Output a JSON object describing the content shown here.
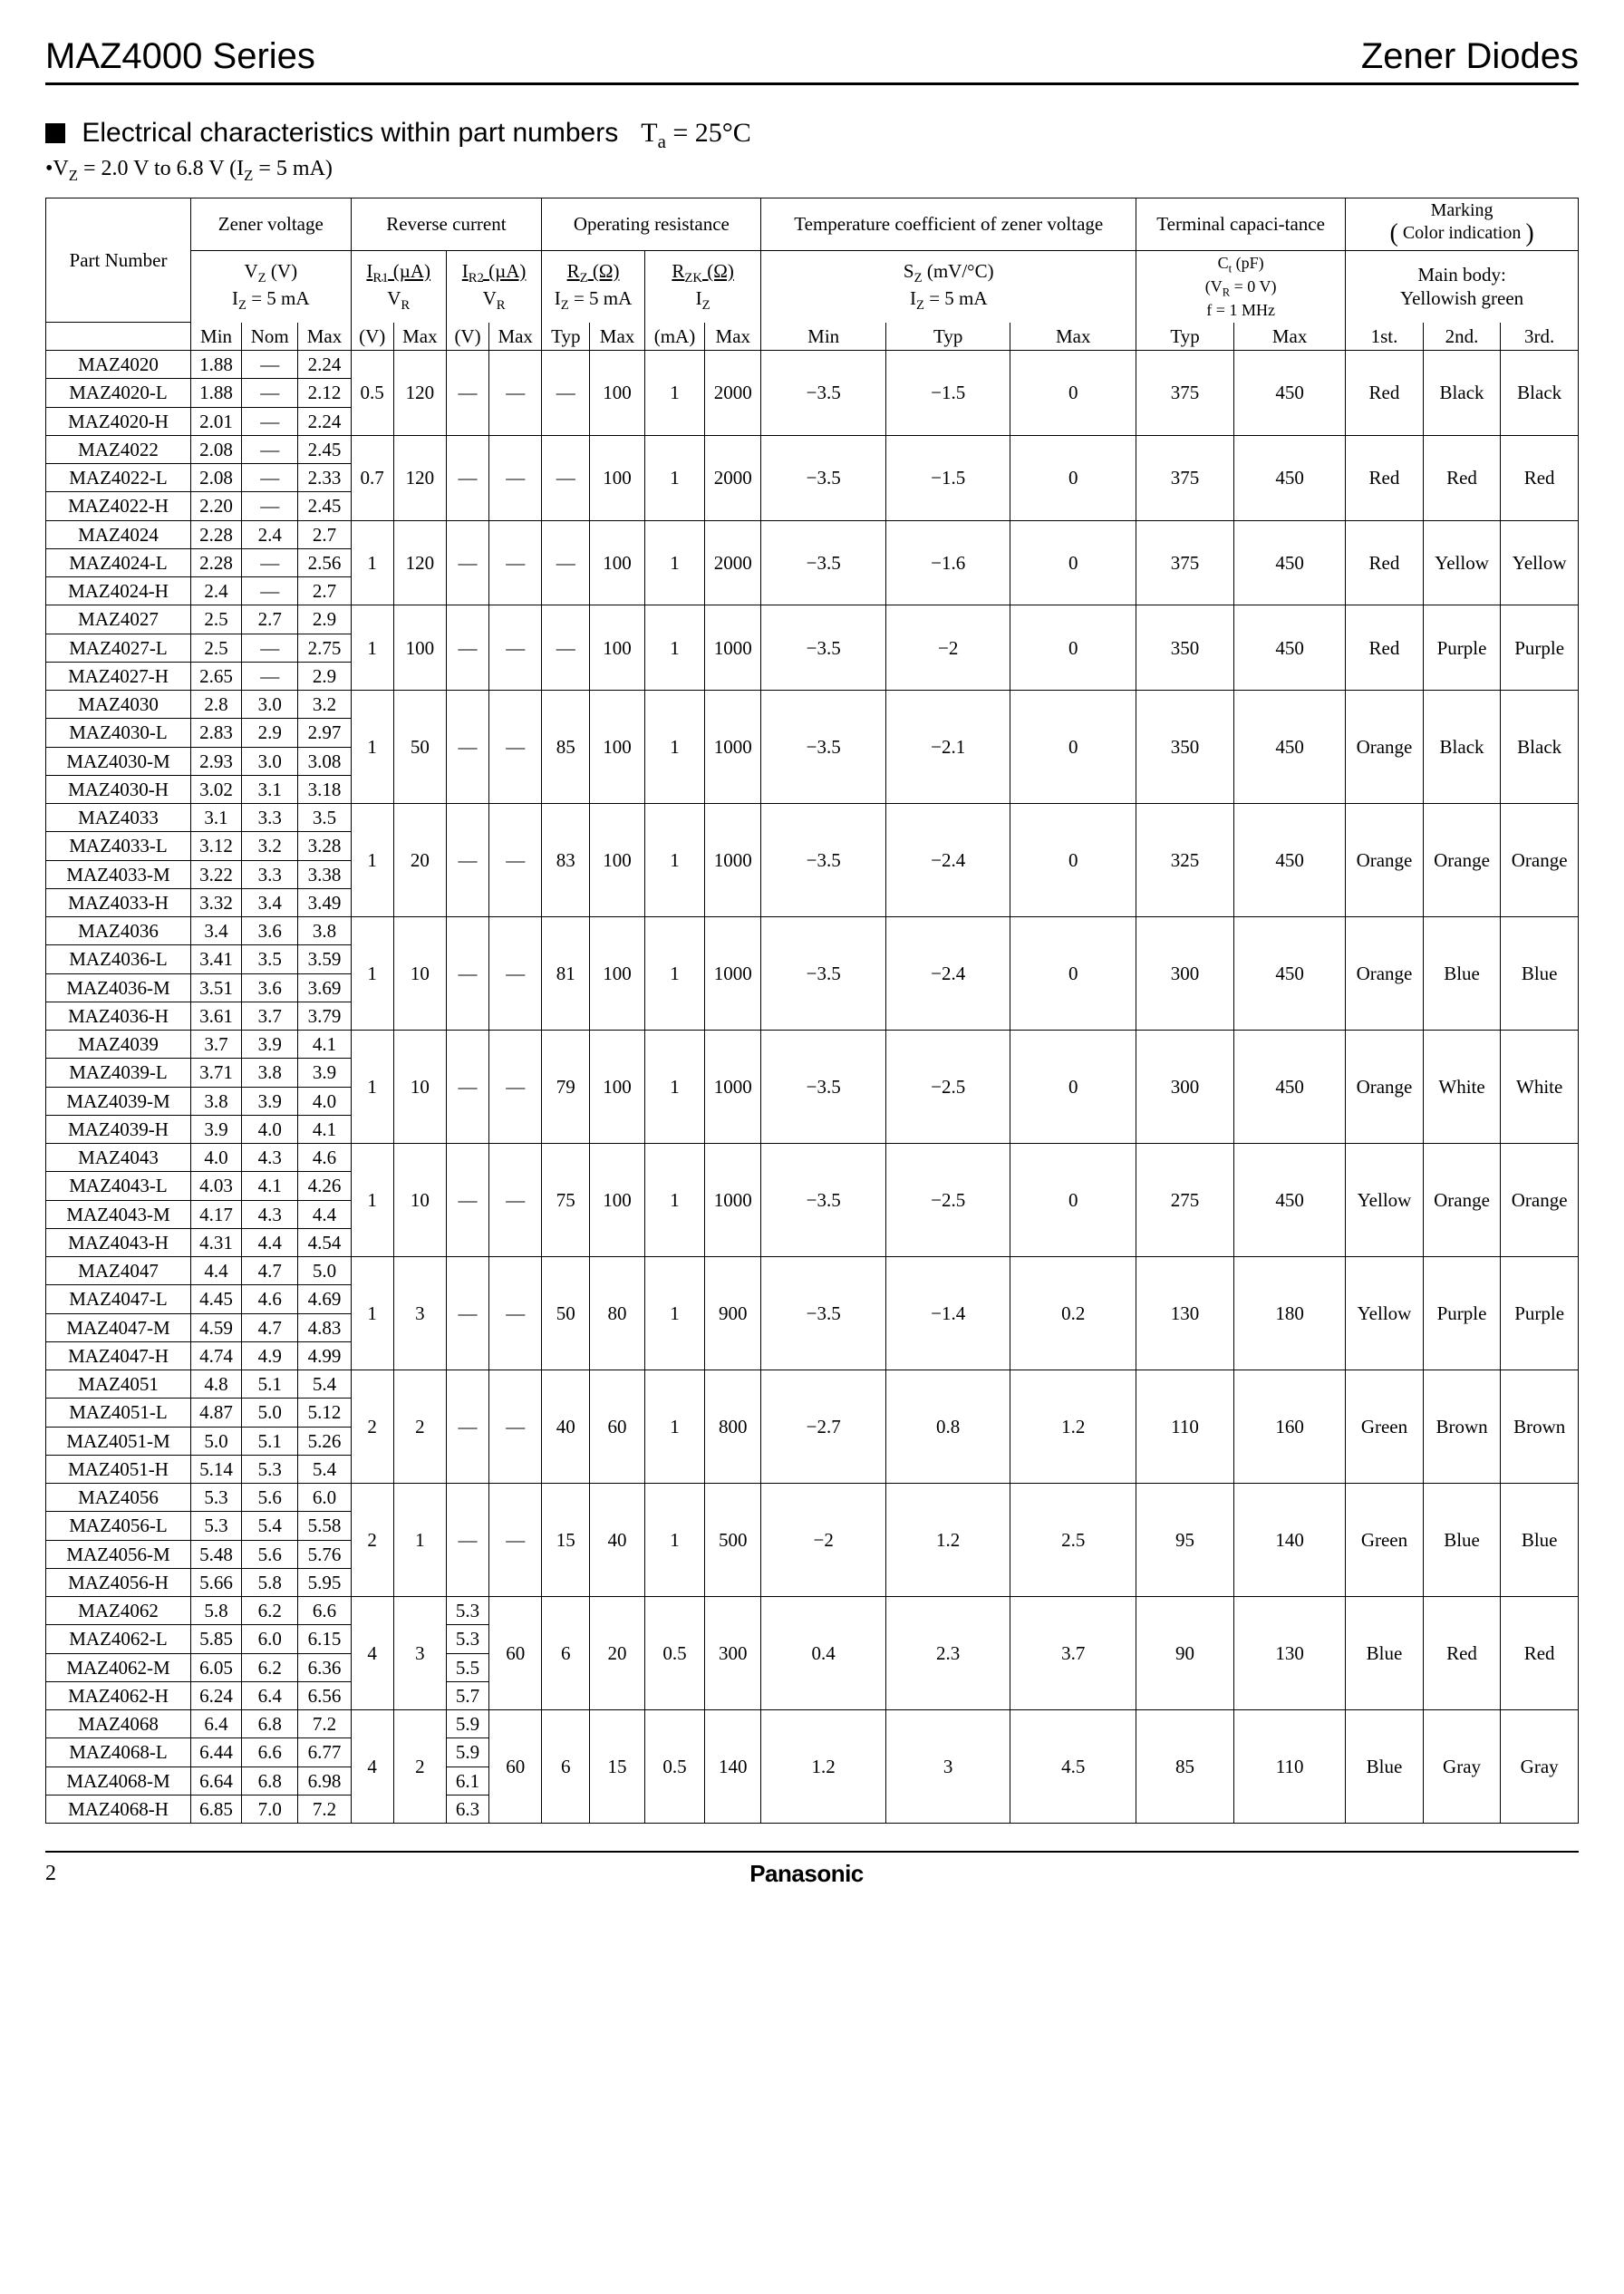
{
  "header": {
    "series": "MAZ4000 Series",
    "category": "Zener Diodes"
  },
  "section": {
    "title_prefix": "Electrical characteristics within part numbers",
    "temp_expr": "T",
    "temp_sub": "a",
    "temp_val": " = 25°C",
    "note": "•V",
    "note_sub1": "Z",
    "note_mid": " = 2.0 V to 6.8 V (I",
    "note_sub2": "Z",
    "note_end": " = 5 mA)"
  },
  "table": {
    "group_headers": {
      "part": "Part Number",
      "zener": "Zener voltage",
      "reverse": "Reverse current",
      "resist": "Operating resistance",
      "temp": "Temperature coefficient of zener voltage",
      "cap": "Terminal capaci-tance",
      "marking": "Marking",
      "marking_sub": "Color indication",
      "main_body": "Main body:",
      "yellowish": "Yellowish green"
    },
    "sub_headers": {
      "vz": "V",
      "vz_sub": "Z",
      "vz_unit": " (V)",
      "iz5": "I",
      "iz5_sub": "Z",
      "iz5_end": " = 5 mA",
      "ir1": "I",
      "ir1_sub": "R1",
      "ir1_unit": " (µA)",
      "vr": "V",
      "vr_sub": "R",
      "ir2": "I",
      "ir2_sub": "R2",
      "ir2_unit": " (µA)",
      "rz": "R",
      "rz_sub": "Z",
      "rz_unit": " (Ω)",
      "rzk": "R",
      "rzk_sub": "ZK",
      "rzk_unit": " (Ω)",
      "iz": "I",
      "iz_sub": "Z",
      "sz": "S",
      "sz_sub": "Z",
      "sz_unit": " (mV/°C)",
      "ct": "C",
      "ct_sub": "t",
      "ct_unit": " (pF)",
      "ct_cond1": "(V",
      "ct_cond1_sub": "R",
      "ct_cond1_end": " = 0 V)",
      "ct_cond2": "f = 1 MHz"
    },
    "col_labels": {
      "min": "Min",
      "nom": "Nom",
      "max": "Max",
      "v": "(V)",
      "typ": "Typ",
      "ma": "(mA)",
      "first": "1st.",
      "second": "2nd.",
      "third": "3rd."
    },
    "groups": [
      {
        "parts": [
          {
            "pn": "MAZ4020",
            "min": "1.88",
            "nom": "—",
            "max": "2.24"
          },
          {
            "pn": "MAZ4020-L",
            "min": "1.88",
            "nom": "—",
            "max": "2.12"
          },
          {
            "pn": "MAZ4020-H",
            "min": "2.01",
            "nom": "—",
            "max": "2.24"
          }
        ],
        "ir1": {
          "vr": "0.5",
          "max": "120"
        },
        "ir2": {
          "vr": "—",
          "max": "—"
        },
        "rz": {
          "typ": "—",
          "max": "100"
        },
        "rzk": {
          "iz": "1",
          "max": "2000"
        },
        "sz": {
          "min": "−3.5",
          "typ": "−1.5",
          "max": "0"
        },
        "ct": {
          "typ": "375",
          "max": "450"
        },
        "mark": {
          "c1": "Red",
          "c2": "Black",
          "c3": "Black"
        }
      },
      {
        "parts": [
          {
            "pn": "MAZ4022",
            "min": "2.08",
            "nom": "—",
            "max": "2.45"
          },
          {
            "pn": "MAZ4022-L",
            "min": "2.08",
            "nom": "—",
            "max": "2.33"
          },
          {
            "pn": "MAZ4022-H",
            "min": "2.20",
            "nom": "—",
            "max": "2.45"
          }
        ],
        "ir1": {
          "vr": "0.7",
          "max": "120"
        },
        "ir2": {
          "vr": "—",
          "max": "—"
        },
        "rz": {
          "typ": "—",
          "max": "100"
        },
        "rzk": {
          "iz": "1",
          "max": "2000"
        },
        "sz": {
          "min": "−3.5",
          "typ": "−1.5",
          "max": "0"
        },
        "ct": {
          "typ": "375",
          "max": "450"
        },
        "mark": {
          "c1": "Red",
          "c2": "Red",
          "c3": "Red"
        }
      },
      {
        "parts": [
          {
            "pn": "MAZ4024",
            "min": "2.28",
            "nom": "2.4",
            "max": "2.7"
          },
          {
            "pn": "MAZ4024-L",
            "min": "2.28",
            "nom": "—",
            "max": "2.56"
          },
          {
            "pn": "MAZ4024-H",
            "min": "2.4",
            "nom": "—",
            "max": "2.7"
          }
        ],
        "ir1": {
          "vr": "1",
          "max": "120"
        },
        "ir2": {
          "vr": "—",
          "max": "—"
        },
        "rz": {
          "typ": "—",
          "max": "100"
        },
        "rzk": {
          "iz": "1",
          "max": "2000"
        },
        "sz": {
          "min": "−3.5",
          "typ": "−1.6",
          "max": "0"
        },
        "ct": {
          "typ": "375",
          "max": "450"
        },
        "mark": {
          "c1": "Red",
          "c2": "Yellow",
          "c3": "Yellow"
        }
      },
      {
        "parts": [
          {
            "pn": "MAZ4027",
            "min": "2.5",
            "nom": "2.7",
            "max": "2.9"
          },
          {
            "pn": "MAZ4027-L",
            "min": "2.5",
            "nom": "—",
            "max": "2.75"
          },
          {
            "pn": "MAZ4027-H",
            "min": "2.65",
            "nom": "—",
            "max": "2.9"
          }
        ],
        "ir1": {
          "vr": "1",
          "max": "100"
        },
        "ir2": {
          "vr": "—",
          "max": "—"
        },
        "rz": {
          "typ": "—",
          "max": "100"
        },
        "rzk": {
          "iz": "1",
          "max": "1000"
        },
        "sz": {
          "min": "−3.5",
          "typ": "−2",
          "max": "0"
        },
        "ct": {
          "typ": "350",
          "max": "450"
        },
        "mark": {
          "c1": "Red",
          "c2": "Purple",
          "c3": "Purple"
        }
      },
      {
        "parts": [
          {
            "pn": "MAZ4030",
            "min": "2.8",
            "nom": "3.0",
            "max": "3.2"
          },
          {
            "pn": "MAZ4030-L",
            "min": "2.83",
            "nom": "2.9",
            "max": "2.97"
          },
          {
            "pn": "MAZ4030-M",
            "min": "2.93",
            "nom": "3.0",
            "max": "3.08"
          },
          {
            "pn": "MAZ4030-H",
            "min": "3.02",
            "nom": "3.1",
            "max": "3.18"
          }
        ],
        "ir1": {
          "vr": "1",
          "max": "50"
        },
        "ir2": {
          "vr": "—",
          "max": "—"
        },
        "rz": {
          "typ": "85",
          "max": "100"
        },
        "rzk": {
          "iz": "1",
          "max": "1000"
        },
        "sz": {
          "min": "−3.5",
          "typ": "−2.1",
          "max": "0"
        },
        "ct": {
          "typ": "350",
          "max": "450"
        },
        "mark": {
          "c1": "Orange",
          "c2": "Black",
          "c3": "Black"
        }
      },
      {
        "parts": [
          {
            "pn": "MAZ4033",
            "min": "3.1",
            "nom": "3.3",
            "max": "3.5"
          },
          {
            "pn": "MAZ4033-L",
            "min": "3.12",
            "nom": "3.2",
            "max": "3.28"
          },
          {
            "pn": "MAZ4033-M",
            "min": "3.22",
            "nom": "3.3",
            "max": "3.38"
          },
          {
            "pn": "MAZ4033-H",
            "min": "3.32",
            "nom": "3.4",
            "max": "3.49"
          }
        ],
        "ir1": {
          "vr": "1",
          "max": "20"
        },
        "ir2": {
          "vr": "—",
          "max": "—"
        },
        "rz": {
          "typ": "83",
          "max": "100"
        },
        "rzk": {
          "iz": "1",
          "max": "1000"
        },
        "sz": {
          "min": "−3.5",
          "typ": "−2.4",
          "max": "0"
        },
        "ct": {
          "typ": "325",
          "max": "450"
        },
        "mark": {
          "c1": "Orange",
          "c2": "Orange",
          "c3": "Orange"
        }
      },
      {
        "parts": [
          {
            "pn": "MAZ4036",
            "min": "3.4",
            "nom": "3.6",
            "max": "3.8"
          },
          {
            "pn": "MAZ4036-L",
            "min": "3.41",
            "nom": "3.5",
            "max": "3.59"
          },
          {
            "pn": "MAZ4036-M",
            "min": "3.51",
            "nom": "3.6",
            "max": "3.69"
          },
          {
            "pn": "MAZ4036-H",
            "min": "3.61",
            "nom": "3.7",
            "max": "3.79"
          }
        ],
        "ir1": {
          "vr": "1",
          "max": "10"
        },
        "ir2": {
          "vr": "—",
          "max": "—"
        },
        "rz": {
          "typ": "81",
          "max": "100"
        },
        "rzk": {
          "iz": "1",
          "max": "1000"
        },
        "sz": {
          "min": "−3.5",
          "typ": "−2.4",
          "max": "0"
        },
        "ct": {
          "typ": "300",
          "max": "450"
        },
        "mark": {
          "c1": "Orange",
          "c2": "Blue",
          "c3": "Blue"
        }
      },
      {
        "parts": [
          {
            "pn": "MAZ4039",
            "min": "3.7",
            "nom": "3.9",
            "max": "4.1"
          },
          {
            "pn": "MAZ4039-L",
            "min": "3.71",
            "nom": "3.8",
            "max": "3.9"
          },
          {
            "pn": "MAZ4039-M",
            "min": "3.8",
            "nom": "3.9",
            "max": "4.0"
          },
          {
            "pn": "MAZ4039-H",
            "min": "3.9",
            "nom": "4.0",
            "max": "4.1"
          }
        ],
        "ir1": {
          "vr": "1",
          "max": "10"
        },
        "ir2": {
          "vr": "—",
          "max": "—"
        },
        "rz": {
          "typ": "79",
          "max": "100"
        },
        "rzk": {
          "iz": "1",
          "max": "1000"
        },
        "sz": {
          "min": "−3.5",
          "typ": "−2.5",
          "max": "0"
        },
        "ct": {
          "typ": "300",
          "max": "450"
        },
        "mark": {
          "c1": "Orange",
          "c2": "White",
          "c3": "White"
        }
      },
      {
        "parts": [
          {
            "pn": "MAZ4043",
            "min": "4.0",
            "nom": "4.3",
            "max": "4.6"
          },
          {
            "pn": "MAZ4043-L",
            "min": "4.03",
            "nom": "4.1",
            "max": "4.26"
          },
          {
            "pn": "MAZ4043-M",
            "min": "4.17",
            "nom": "4.3",
            "max": "4.4"
          },
          {
            "pn": "MAZ4043-H",
            "min": "4.31",
            "nom": "4.4",
            "max": "4.54"
          }
        ],
        "ir1": {
          "vr": "1",
          "max": "10"
        },
        "ir2": {
          "vr": "—",
          "max": "—"
        },
        "rz": {
          "typ": "75",
          "max": "100"
        },
        "rzk": {
          "iz": "1",
          "max": "1000"
        },
        "sz": {
          "min": "−3.5",
          "typ": "−2.5",
          "max": "0"
        },
        "ct": {
          "typ": "275",
          "max": "450"
        },
        "mark": {
          "c1": "Yellow",
          "c2": "Orange",
          "c3": "Orange"
        }
      },
      {
        "parts": [
          {
            "pn": "MAZ4047",
            "min": "4.4",
            "nom": "4.7",
            "max": "5.0"
          },
          {
            "pn": "MAZ4047-L",
            "min": "4.45",
            "nom": "4.6",
            "max": "4.69"
          },
          {
            "pn": "MAZ4047-M",
            "min": "4.59",
            "nom": "4.7",
            "max": "4.83"
          },
          {
            "pn": "MAZ4047-H",
            "min": "4.74",
            "nom": "4.9",
            "max": "4.99"
          }
        ],
        "ir1": {
          "vr": "1",
          "max": "3"
        },
        "ir2": {
          "vr": "—",
          "max": "—"
        },
        "rz": {
          "typ": "50",
          "max": "80"
        },
        "rzk": {
          "iz": "1",
          "max": "900"
        },
        "sz": {
          "min": "−3.5",
          "typ": "−1.4",
          "max": "0.2"
        },
        "ct": {
          "typ": "130",
          "max": "180"
        },
        "mark": {
          "c1": "Yellow",
          "c2": "Purple",
          "c3": "Purple"
        }
      },
      {
        "parts": [
          {
            "pn": "MAZ4051",
            "min": "4.8",
            "nom": "5.1",
            "max": "5.4"
          },
          {
            "pn": "MAZ4051-L",
            "min": "4.87",
            "nom": "5.0",
            "max": "5.12"
          },
          {
            "pn": "MAZ4051-M",
            "min": "5.0",
            "nom": "5.1",
            "max": "5.26"
          },
          {
            "pn": "MAZ4051-H",
            "min": "5.14",
            "nom": "5.3",
            "max": "5.4"
          }
        ],
        "ir1": {
          "vr": "2",
          "max": "2"
        },
        "ir2": {
          "vr": "—",
          "max": "—"
        },
        "rz": {
          "typ": "40",
          "max": "60"
        },
        "rzk": {
          "iz": "1",
          "max": "800"
        },
        "sz": {
          "min": "−2.7",
          "typ": "0.8",
          "max": "1.2"
        },
        "ct": {
          "typ": "110",
          "max": "160"
        },
        "mark": {
          "c1": "Green",
          "c2": "Brown",
          "c3": "Brown"
        }
      },
      {
        "parts": [
          {
            "pn": "MAZ4056",
            "min": "5.3",
            "nom": "5.6",
            "max": "6.0"
          },
          {
            "pn": "MAZ4056-L",
            "min": "5.3",
            "nom": "5.4",
            "max": "5.58"
          },
          {
            "pn": "MAZ4056-M",
            "min": "5.48",
            "nom": "5.6",
            "max": "5.76"
          },
          {
            "pn": "MAZ4056-H",
            "min": "5.66",
            "nom": "5.8",
            "max": "5.95"
          }
        ],
        "ir1": {
          "vr": "2",
          "max": "1"
        },
        "ir2": {
          "vr": "—",
          "max": "—"
        },
        "rz": {
          "typ": "15",
          "max": "40"
        },
        "rzk": {
          "iz": "1",
          "max": "500"
        },
        "sz": {
          "min": "−2",
          "typ": "1.2",
          "max": "2.5"
        },
        "ct": {
          "typ": "95",
          "max": "140"
        },
        "mark": {
          "c1": "Green",
          "c2": "Blue",
          "c3": "Blue"
        }
      },
      {
        "parts": [
          {
            "pn": "MAZ4062",
            "min": "5.8",
            "nom": "6.2",
            "max": "6.6"
          },
          {
            "pn": "MAZ4062-L",
            "min": "5.85",
            "nom": "6.0",
            "max": "6.15"
          },
          {
            "pn": "MAZ4062-M",
            "min": "6.05",
            "nom": "6.2",
            "max": "6.36"
          },
          {
            "pn": "MAZ4062-H",
            "min": "6.24",
            "nom": "6.4",
            "max": "6.56"
          }
        ],
        "ir1": {
          "vr": "4",
          "max": "3"
        },
        "ir2": {
          "vr_list": [
            "5.3",
            "5.3",
            "5.5",
            "5.7"
          ],
          "max": "60"
        },
        "rz": {
          "typ": "6",
          "max": "20"
        },
        "rzk": {
          "iz": "0.5",
          "max": "300"
        },
        "sz": {
          "min": "0.4",
          "typ": "2.3",
          "max": "3.7"
        },
        "ct": {
          "typ": "90",
          "max": "130"
        },
        "mark": {
          "c1": "Blue",
          "c2": "Red",
          "c3": "Red"
        }
      },
      {
        "parts": [
          {
            "pn": "MAZ4068",
            "min": "6.4",
            "nom": "6.8",
            "max": "7.2"
          },
          {
            "pn": "MAZ4068-L",
            "min": "6.44",
            "nom": "6.6",
            "max": "6.77"
          },
          {
            "pn": "MAZ4068-M",
            "min": "6.64",
            "nom": "6.8",
            "max": "6.98"
          },
          {
            "pn": "MAZ4068-H",
            "min": "6.85",
            "nom": "7.0",
            "max": "7.2"
          }
        ],
        "ir1": {
          "vr": "4",
          "max": "2"
        },
        "ir2": {
          "vr_list": [
            "5.9",
            "5.9",
            "6.1",
            "6.3"
          ],
          "max": "60"
        },
        "rz": {
          "typ": "6",
          "max": "15"
        },
        "rzk": {
          "iz": "0.5",
          "max": "140"
        },
        "sz": {
          "min": "1.2",
          "typ": "3",
          "max": "4.5"
        },
        "ct": {
          "typ": "85",
          "max": "110"
        },
        "mark": {
          "c1": "Blue",
          "c2": "Gray",
          "c3": "Gray"
        }
      }
    ]
  },
  "footer": {
    "page": "2",
    "brand": "Panasonic"
  }
}
